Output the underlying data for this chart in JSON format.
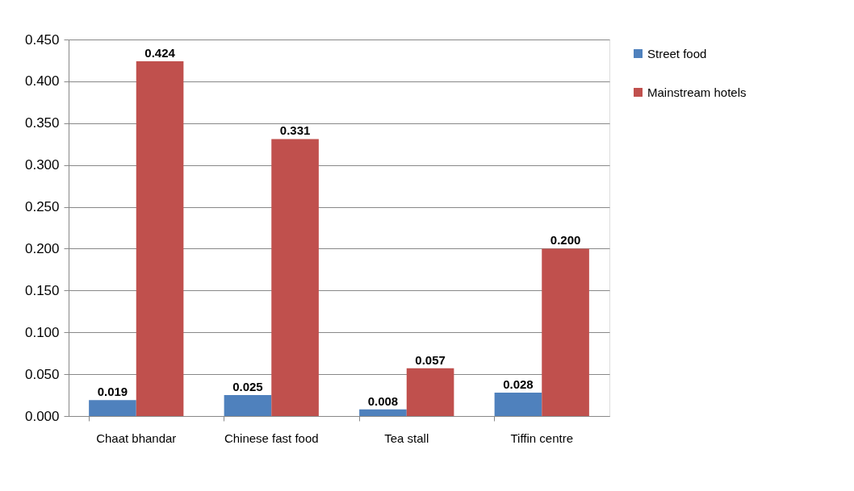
{
  "chart_data": {
    "type": "bar",
    "categories": [
      "Chaat bhandar",
      "Chinese fast food",
      "Tea stall",
      "Tiffin centre"
    ],
    "series": [
      {
        "name": "Street food",
        "color": "#4f81bd",
        "values": [
          0.019,
          0.025,
          0.008,
          0.028
        ],
        "value_labels": [
          "0.019",
          "0.025",
          "0.008",
          "0.028"
        ]
      },
      {
        "name": "Mainstream hotels",
        "color": "#c0504d",
        "values": [
          0.424,
          0.331,
          0.057,
          0.2
        ],
        "value_labels": [
          "0.424",
          "0.331",
          "0.057",
          "0.200"
        ]
      }
    ],
    "ylim": [
      0,
      0.45
    ],
    "yticks": [
      {
        "value": 0,
        "label": "0.000"
      },
      {
        "value": 0.05,
        "label": "0.050"
      },
      {
        "value": 0.1,
        "label": "0.100"
      },
      {
        "value": 0.15,
        "label": "0.150"
      },
      {
        "value": 0.2,
        "label": "0.200"
      },
      {
        "value": 0.25,
        "label": "0.250"
      },
      {
        "value": 0.3,
        "label": "0.300"
      },
      {
        "value": 0.35,
        "label": "0.350"
      },
      {
        "value": 0.4,
        "label": "0.400"
      },
      {
        "value": 0.45,
        "label": "0.450"
      }
    ],
    "grid": "y",
    "legend": "right"
  }
}
